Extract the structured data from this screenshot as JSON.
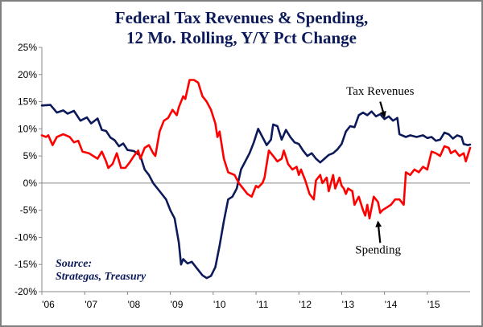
{
  "chart_data": {
    "type": "line",
    "title_line1": "Federal Tax Revenues & Spending,",
    "title_line2": "12 Mo. Rolling, Y/Y Pct Change",
    "xlabel": "",
    "ylabel": "",
    "ylim": [
      -20,
      25
    ],
    "y_ticks": [
      25,
      20,
      15,
      10,
      5,
      0,
      -5,
      -10,
      -15,
      -20
    ],
    "y_tick_labels": [
      "25%",
      "20%",
      "15%",
      "10%",
      "5%",
      "0%",
      "-5%",
      "-10%",
      "-15%",
      "-20%"
    ],
    "xlim": [
      2006,
      2016
    ],
    "x_ticks": [
      2006,
      2007,
      2008,
      2009,
      2010,
      2011,
      2012,
      2013,
      2014,
      2015
    ],
    "x_tick_labels": [
      "'06",
      "'07",
      "'08",
      "'09",
      "'10",
      "'11",
      "'12",
      "'13",
      "'14",
      "'15"
    ],
    "series": [
      {
        "name": "Tax Revenues",
        "color": "#0c1a5a",
        "points": [
          [
            2006.0,
            14.3
          ],
          [
            2006.2,
            14.4
          ],
          [
            2006.35,
            13.0
          ],
          [
            2006.5,
            13.4
          ],
          [
            2006.6,
            12.8
          ],
          [
            2006.75,
            13.3
          ],
          [
            2006.9,
            11.5
          ],
          [
            2007.05,
            12.1
          ],
          [
            2007.15,
            11.0
          ],
          [
            2007.3,
            11.9
          ],
          [
            2007.4,
            9.8
          ],
          [
            2007.5,
            9.6
          ],
          [
            2007.6,
            8.4
          ],
          [
            2007.7,
            7.9
          ],
          [
            2007.8,
            6.8
          ],
          [
            2007.9,
            7.3
          ],
          [
            2008.0,
            6.1
          ],
          [
            2008.15,
            5.9
          ],
          [
            2008.3,
            5.0
          ],
          [
            2008.4,
            2.5
          ],
          [
            2008.5,
            1.5
          ],
          [
            2008.6,
            0.0
          ],
          [
            2008.75,
            -1.5
          ],
          [
            2008.9,
            -3.0
          ],
          [
            2009.0,
            -5.0
          ],
          [
            2009.1,
            -6.5
          ],
          [
            2009.2,
            -11.0
          ],
          [
            2009.25,
            -15.0
          ],
          [
            2009.3,
            -14.0
          ],
          [
            2009.4,
            -14.8
          ],
          [
            2009.5,
            -14.5
          ],
          [
            2009.6,
            -15.5
          ],
          [
            2009.75,
            -17.0
          ],
          [
            2009.85,
            -17.5
          ],
          [
            2009.95,
            -17.1
          ],
          [
            2010.05,
            -15.5
          ],
          [
            2010.15,
            -11.5
          ],
          [
            2010.25,
            -7.0
          ],
          [
            2010.35,
            -3.0
          ],
          [
            2010.45,
            -2.5
          ],
          [
            2010.55,
            -1.0
          ],
          [
            2010.65,
            2.5
          ],
          [
            2010.75,
            4.0
          ],
          [
            2010.85,
            5.5
          ],
          [
            2010.95,
            7.5
          ],
          [
            2011.05,
            10.0
          ],
          [
            2011.15,
            8.5
          ],
          [
            2011.25,
            7.0
          ],
          [
            2011.35,
            8.0
          ],
          [
            2011.4,
            10.8
          ],
          [
            2011.5,
            10.5
          ],
          [
            2011.6,
            8.0
          ],
          [
            2011.7,
            9.8
          ],
          [
            2011.8,
            8.5
          ],
          [
            2011.9,
            7.5
          ],
          [
            2012.0,
            7.2
          ],
          [
            2012.1,
            6.0
          ],
          [
            2012.2,
            5.0
          ],
          [
            2012.3,
            5.5
          ],
          [
            2012.4,
            4.5
          ],
          [
            2012.5,
            3.8
          ],
          [
            2012.6,
            4.5
          ],
          [
            2012.7,
            5.2
          ],
          [
            2012.8,
            5.5
          ],
          [
            2012.9,
            6.2
          ],
          [
            2013.0,
            7.2
          ],
          [
            2013.1,
            9.5
          ],
          [
            2013.2,
            10.5
          ],
          [
            2013.3,
            10.3
          ],
          [
            2013.4,
            12.5
          ],
          [
            2013.5,
            13.0
          ],
          [
            2013.6,
            12.5
          ],
          [
            2013.7,
            13.2
          ],
          [
            2013.8,
            12.3
          ],
          [
            2013.9,
            12.7
          ],
          [
            2014.0,
            11.8
          ],
          [
            2014.1,
            12.3
          ],
          [
            2014.2,
            11.5
          ],
          [
            2014.3,
            12.0
          ],
          [
            2014.35,
            9.0
          ],
          [
            2014.5,
            8.5
          ],
          [
            2014.6,
            8.8
          ],
          [
            2014.75,
            8.5
          ],
          [
            2014.9,
            8.8
          ],
          [
            2015.0,
            8.3
          ],
          [
            2015.1,
            8.5
          ],
          [
            2015.2,
            7.8
          ],
          [
            2015.3,
            8.0
          ],
          [
            2015.4,
            9.3
          ],
          [
            2015.5,
            9.0
          ],
          [
            2015.6,
            8.2
          ],
          [
            2015.7,
            8.8
          ],
          [
            2015.8,
            8.5
          ],
          [
            2015.85,
            7.2
          ],
          [
            2015.95,
            7.0
          ],
          [
            2016.0,
            7.1
          ]
        ]
      },
      {
        "name": "Spending",
        "color": "#ff0000",
        "points": [
          [
            2006.0,
            8.8
          ],
          [
            2006.1,
            8.5
          ],
          [
            2006.15,
            8.8
          ],
          [
            2006.25,
            7.0
          ],
          [
            2006.35,
            8.5
          ],
          [
            2006.5,
            9.0
          ],
          [
            2006.65,
            8.5
          ],
          [
            2006.75,
            7.5
          ],
          [
            2006.85,
            7.8
          ],
          [
            2006.95,
            5.8
          ],
          [
            2007.1,
            5.5
          ],
          [
            2007.2,
            5.0
          ],
          [
            2007.3,
            4.5
          ],
          [
            2007.4,
            5.8
          ],
          [
            2007.5,
            4.0
          ],
          [
            2007.55,
            2.8
          ],
          [
            2007.65,
            3.5
          ],
          [
            2007.75,
            5.5
          ],
          [
            2007.85,
            2.8
          ],
          [
            2007.95,
            2.8
          ],
          [
            2008.05,
            3.8
          ],
          [
            2008.15,
            5.0
          ],
          [
            2008.25,
            6.0
          ],
          [
            2008.3,
            4.5
          ],
          [
            2008.4,
            6.5
          ],
          [
            2008.5,
            7.0
          ],
          [
            2008.6,
            5.5
          ],
          [
            2008.65,
            5.0
          ],
          [
            2008.75,
            9.5
          ],
          [
            2008.85,
            11.5
          ],
          [
            2008.95,
            12.0
          ],
          [
            2009.05,
            13.5
          ],
          [
            2009.15,
            12.5
          ],
          [
            2009.2,
            14.0
          ],
          [
            2009.3,
            16.0
          ],
          [
            2009.35,
            15.5
          ],
          [
            2009.45,
            19.0
          ],
          [
            2009.55,
            19.0
          ],
          [
            2009.65,
            18.5
          ],
          [
            2009.75,
            16.0
          ],
          [
            2009.85,
            15.0
          ],
          [
            2009.95,
            13.5
          ],
          [
            2010.05,
            11.0
          ],
          [
            2010.1,
            8.5
          ],
          [
            2010.15,
            9.5
          ],
          [
            2010.25,
            4.5
          ],
          [
            2010.35,
            2.0
          ],
          [
            2010.5,
            1.5
          ],
          [
            2010.6,
            0.0
          ],
          [
            2010.7,
            -1.0
          ],
          [
            2010.8,
            -2.0
          ],
          [
            2010.9,
            -2.5
          ],
          [
            2010.95,
            -1.5
          ],
          [
            2011.0,
            -0.5
          ],
          [
            2011.05,
            -0.8
          ],
          [
            2011.15,
            0.0
          ],
          [
            2011.2,
            1.0
          ],
          [
            2011.3,
            6.0
          ],
          [
            2011.4,
            5.0
          ],
          [
            2011.5,
            4.0
          ],
          [
            2011.6,
            4.5
          ],
          [
            2011.65,
            6.0
          ],
          [
            2011.75,
            3.5
          ],
          [
            2011.85,
            2.5
          ],
          [
            2011.95,
            3.0
          ],
          [
            2012.0,
            1.5
          ],
          [
            2012.05,
            2.5
          ],
          [
            2012.15,
            0.5
          ],
          [
            2012.25,
            -2.0
          ],
          [
            2012.35,
            -3.0
          ],
          [
            2012.4,
            0.5
          ],
          [
            2012.5,
            1.5
          ],
          [
            2012.55,
            0.0
          ],
          [
            2012.65,
            1.0
          ],
          [
            2012.7,
            -1.5
          ],
          [
            2012.8,
            1.5
          ],
          [
            2012.85,
            -1.0
          ],
          [
            2012.95,
            1.0
          ],
          [
            2013.0,
            -0.5
          ],
          [
            2013.05,
            -1.0
          ],
          [
            2013.1,
            -2.0
          ],
          [
            2013.15,
            -1.0
          ],
          [
            2013.25,
            -1.5
          ],
          [
            2013.3,
            -4.0
          ],
          [
            2013.4,
            -2.5
          ],
          [
            2013.5,
            -5.0
          ],
          [
            2013.55,
            -6.0
          ],
          [
            2013.6,
            -4.0
          ],
          [
            2013.65,
            -6.5
          ],
          [
            2013.75,
            -2.5
          ],
          [
            2013.85,
            -3.5
          ],
          [
            2013.9,
            -5.5
          ],
          [
            2013.95,
            -5.0
          ],
          [
            2014.05,
            -4.5
          ],
          [
            2014.15,
            -4.0
          ],
          [
            2014.25,
            -3.0
          ],
          [
            2014.35,
            -3.0
          ],
          [
            2014.45,
            -4.0
          ],
          [
            2014.5,
            2.0
          ],
          [
            2014.6,
            1.5
          ],
          [
            2014.7,
            2.5
          ],
          [
            2014.8,
            2.0
          ],
          [
            2014.9,
            3.0
          ],
          [
            2015.0,
            2.5
          ],
          [
            2015.1,
            5.8
          ],
          [
            2015.2,
            5.5
          ],
          [
            2015.3,
            5.0
          ],
          [
            2015.4,
            6.8
          ],
          [
            2015.5,
            6.5
          ],
          [
            2015.55,
            5.5
          ],
          [
            2015.65,
            6.0
          ],
          [
            2015.75,
            5.0
          ],
          [
            2015.85,
            5.5
          ],
          [
            2015.9,
            4.0
          ],
          [
            2016.0,
            6.5
          ]
        ]
      }
    ],
    "annotations": [
      {
        "text": "Tax Revenues",
        "anchor": [
          2013.9,
          16.3
        ],
        "arrow_from": [
          2013.9,
          15.0
        ],
        "arrow_to": [
          2014.0,
          12.3
        ]
      },
      {
        "text": "Spending",
        "anchor": [
          2013.85,
          -13.0
        ],
        "arrow_from": [
          2013.9,
          -11.0
        ],
        "arrow_to": [
          2013.85,
          -7.2
        ]
      }
    ],
    "source_line1": "Source:",
    "source_line2": "Strategas, Treasury",
    "grid": false,
    "legend": "none"
  }
}
